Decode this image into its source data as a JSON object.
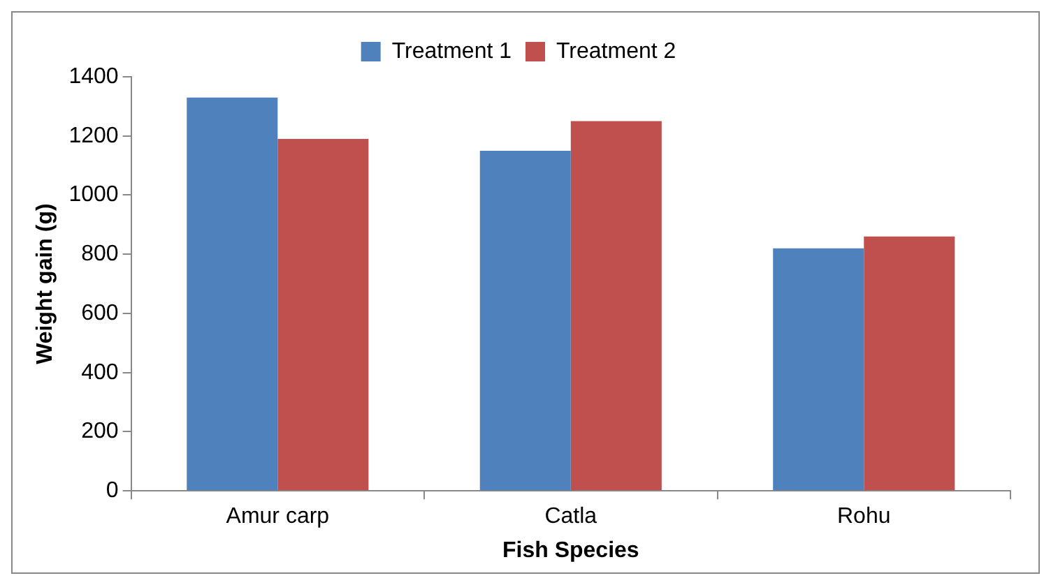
{
  "chart_data": {
    "type": "bar",
    "xlabel": "Fish Species",
    "ylabel": "Weight gain (g)",
    "categories": [
      "Amur carp",
      "Catla",
      "Rohu"
    ],
    "series": [
      {
        "name": "Treatment 1",
        "color": "#4f81bd",
        "values": [
          1330,
          1150,
          820
        ]
      },
      {
        "name": "Treatment 2",
        "color": "#c0504d",
        "values": [
          1190,
          1250,
          860
        ]
      }
    ],
    "ylim": [
      0,
      1400
    ],
    "yticks": [
      0,
      200,
      400,
      600,
      800,
      1000,
      1200,
      1400
    ],
    "grid": false,
    "legend": "top"
  }
}
